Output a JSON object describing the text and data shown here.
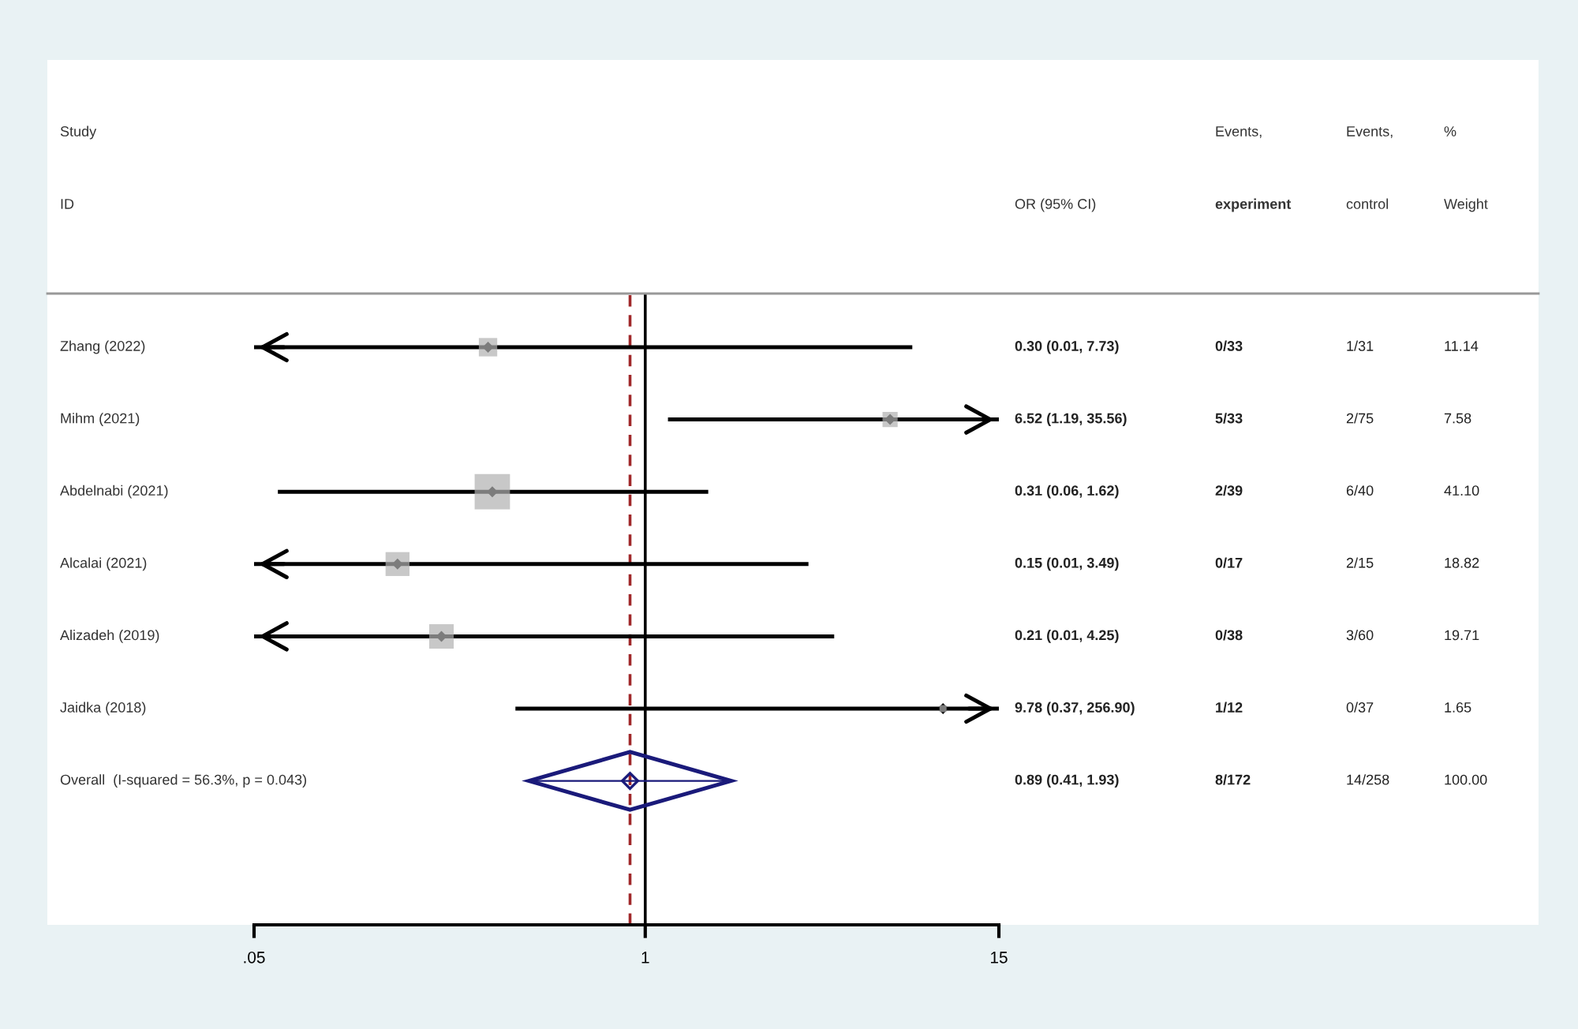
{
  "chart_data": {
    "type": "bubble",
    "orientation": "horizontal",
    "log": "x",
    "grid": false,
    "categories": [
      "Zhang (2022)",
      "Mihm (2021)",
      "Abdelnabi (2021)",
      "Alcalai (2021)",
      "Alizadeh (2019)",
      "Jaidka (2018)",
      "Overall  (I-squared = 56.3%, p = 0.043)"
    ],
    "xlim": [
      0.05,
      15
    ],
    "xticks": [
      {
        "value": 0.05,
        "label": ".05"
      },
      {
        "value": 1,
        "label": "1"
      },
      {
        "value": 15,
        "label": "15"
      }
    ],
    "series": [
      {
        "color": "#b0b0b0",
        "marker": "square",
        "values": [
          0.3,
          6.52,
          0.31,
          0.15,
          0.21,
          9.78,
          null
        ],
        "errors": [
          [
            0.01,
            7.73
          ],
          [
            1.19,
            35.56
          ],
          [
            0.06,
            1.62
          ],
          [
            0.01,
            3.49
          ],
          [
            0.01,
            4.25
          ],
          [
            0.37,
            256.9
          ],
          null
        ],
        "sizes": [
          0.271,
          0.184,
          1,
          0.458,
          0.48,
          0.04,
          null
        ]
      },
      {
        "color": "#1a1a7a",
        "marker": "diamond",
        "values": [
          null,
          null,
          null,
          null,
          null,
          null,
          0.89
        ],
        "errors": [
          null,
          null,
          null,
          null,
          null,
          null,
          [
            0.41,
            1.93
          ]
        ]
      }
    ],
    "ref_lines": [
      {
        "axis": "x",
        "value": 1,
        "color": "#000000",
        "line_style": "solid"
      },
      {
        "axis": "x",
        "value": 0.89,
        "color": "#a0282a",
        "line_style": "dashed"
      }
    ],
    "annotations": [
      "Study",
      "ID",
      "OR (95% CI)",
      "Events,",
      "experiment",
      "Events,",
      "control",
      "%",
      "Weight",
      "0.30 (0.01, 7.73)",
      "0/33",
      "1/31",
      "11.14",
      "6.52 (1.19, 35.56)",
      "5/33",
      "2/75",
      "7.58",
      "0.31 (0.06, 1.62)",
      "2/39",
      "6/40",
      "41.10",
      "0.15 (0.01, 3.49)",
      "0/17",
      "2/15",
      "18.82",
      "0.21 (0.01, 4.25)",
      "0/38",
      "3/60",
      "19.71",
      "9.78 (0.37, 256.90)",
      "1/12",
      "0/37",
      "1.65",
      "0.89 (0.41, 1.93)",
      "8/172",
      "14/258",
      "100.00"
    ]
  }
}
